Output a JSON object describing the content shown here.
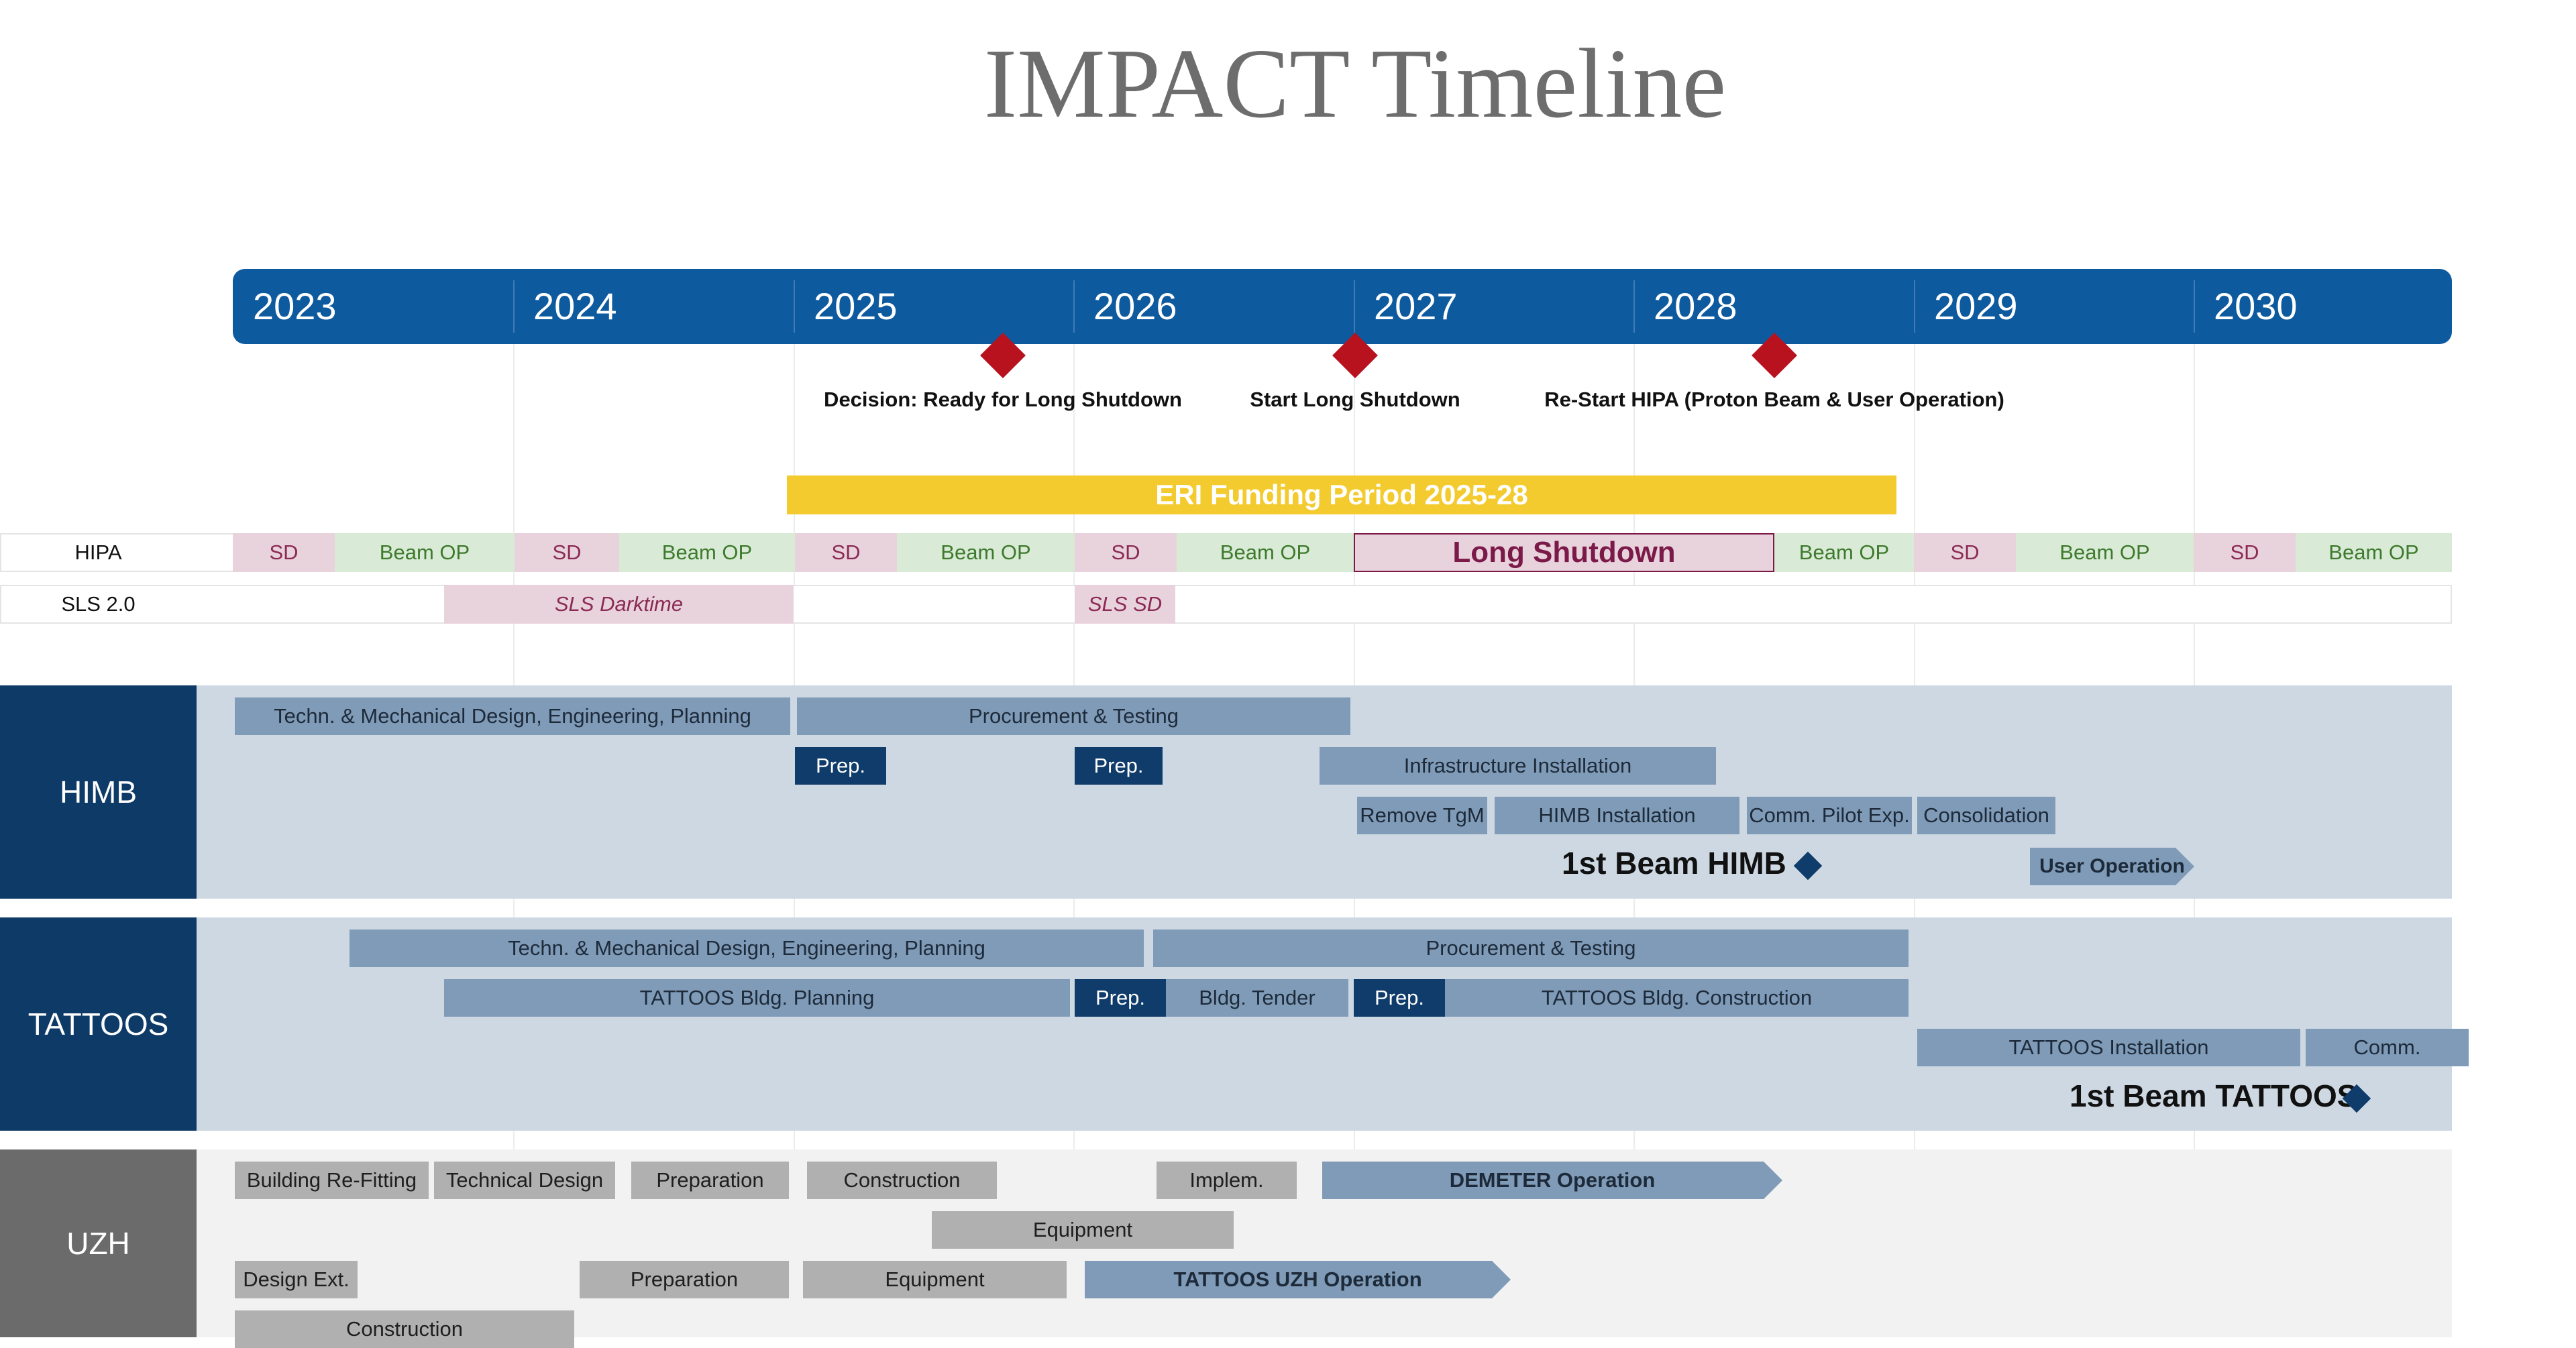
{
  "title": "IMPACT Timeline",
  "years": [
    "2023",
    "2024",
    "2025",
    "2026",
    "2027",
    "2028",
    "2029",
    "2030"
  ],
  "milestones": [
    {
      "label": "Decision: Ready for Long Shutdown"
    },
    {
      "label": "Start Long Shutdown"
    },
    {
      "label": "Re-Start HIPA (Proton Beam & User Operation)"
    }
  ],
  "eri": "ERI Funding Period 2025-28",
  "hipa": {
    "label": "HIPA",
    "segments": [
      "SD",
      "Beam OP",
      "SD",
      "Beam OP",
      "SD",
      "Beam OP",
      "SD",
      "Beam OP",
      "Long Shutdown",
      "Beam OP",
      "SD",
      "Beam OP",
      "SD",
      "Beam OP"
    ]
  },
  "sls": {
    "label": "SLS 2.0",
    "darktime": "SLS Darktime",
    "sd": "SLS SD"
  },
  "himb": {
    "label": "HIMB",
    "bars": [
      "Techn. & Mechanical Design, Engineering, Planning",
      "Procurement & Testing",
      "Prep.",
      "Prep.",
      "Infrastructure Installation",
      "Remove TgM",
      "HIMB Installation",
      "Comm. Pilot Exp.",
      "Consolidation",
      "User Operation"
    ],
    "beam": "1st Beam HIMB"
  },
  "tattoos": {
    "label": "TATTOOS",
    "bars": [
      "Techn. & Mechanical Design, Engineering, Planning",
      "Procurement & Testing",
      "TATTOOS Bldg. Planning",
      "Prep.",
      "Bldg. Tender",
      "Prep.",
      "TATTOOS Bldg. Construction",
      "TATTOOS Installation",
      "Comm."
    ],
    "beam": "1st Beam TATTOOS"
  },
  "uzh": {
    "label": "UZH",
    "bars": [
      "Building Re-Fitting",
      "Technical Design",
      "Preparation",
      "Construction",
      "Implem.",
      "DEMETER Operation",
      "Equipment",
      "Design Ext.",
      "Preparation",
      "Equipment",
      "TATTOOS UZH Operation",
      "Construction"
    ]
  },
  "colors": {
    "yearbar": "#0e5a9e",
    "milestone": "#b8121f",
    "eri": "#f3cb2f",
    "band_himb_tattoos": "#cdd8e3",
    "band_uzh": "#f2f2f2",
    "label_blue": "#0d3a66",
    "label_grey": "#6b6b6b"
  }
}
